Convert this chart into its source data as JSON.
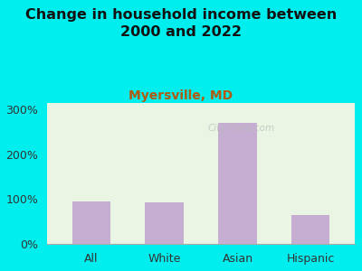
{
  "title": "Change in household income between\n2000 and 2022",
  "subtitle": "Myersville, MD",
  "categories": [
    "All",
    "White",
    "Asian",
    "Hispanic"
  ],
  "values": [
    95,
    93,
    270,
    65
  ],
  "bar_color": "#c5aed2",
  "background_color": "#00eeee",
  "plot_bg_color": "#eaf5e4",
  "title_fontsize": 11.5,
  "subtitle_fontsize": 10,
  "tick_fontsize": 9,
  "yticks": [
    0,
    100,
    200,
    300
  ],
  "ytick_labels": [
    "0%",
    "100%",
    "200%",
    "300%"
  ],
  "ylim": [
    0,
    315
  ],
  "watermark": "City-Data.com",
  "title_color": "#111111",
  "subtitle_color": "#b05a10"
}
